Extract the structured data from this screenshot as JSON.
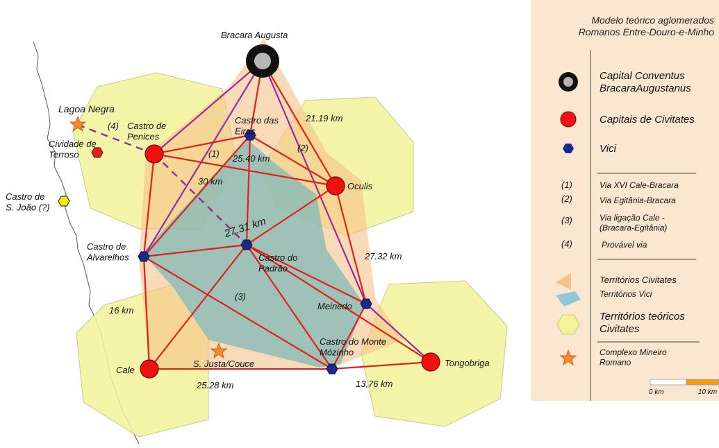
{
  "map": {
    "places": {
      "bracara": "Bracara Augusta",
      "lagoa": "Lagoa Negra",
      "castro_penices": "Castro de\nPenices",
      "cividade": "Cividade de\nTerroso",
      "castro_joao": "Castro de\nS. João (?)",
      "castro_eiras": "Castro das\nEiras",
      "oculis": "Oculis",
      "castro_alvarelhos": "Castro de\nAlvarelhos",
      "castro_padrao": "Castro do\nPadrão",
      "meinedo": "Meinedo",
      "castro_monte": "Castro do Monte\nMózinho",
      "justa": "S. Justa/Couce",
      "cale": "Cale",
      "tongobriga": "Tongobriga"
    },
    "distances": {
      "d2119": "21.19 km",
      "d2540": "25.40 km",
      "d30": "30 km",
      "d2731": "27.31 km",
      "d2732": "27.32 km",
      "d16": "16 km",
      "d2528": "25.28 km",
      "d1376": "13,76 km"
    },
    "route_markers": {
      "r1": "(1)",
      "r2": "(2)",
      "r3": "(3)",
      "r4": "(4)"
    }
  },
  "legend": {
    "title": "Modelo teórico aglomerados\nRomanos Entre-Douro-e-Minho",
    "capital": "Capital Conventus\nBracaraAugustanus",
    "civitates": "Capitais de Civitates",
    "vici": "Vici",
    "routes": [
      {
        "num": "(1)",
        "text": "Via XVI Cale-Bracara"
      },
      {
        "num": "(2)",
        "text": "Via Egitânia-Bracara"
      },
      {
        "num": "(3)",
        "text": "Via ligação Cale -\n(Bracara-Egitânia)"
      },
      {
        "num": "(4)",
        "text": "Provável via"
      }
    ],
    "territories_civ": "Territórios Civitates",
    "territories_vici": "Territórios Vici",
    "theoretical": "Territórios teóricos\nCivitates",
    "mining": "Complexo Mineiro\nRomano",
    "scale_0": "0 km",
    "scale_10": "10 km"
  },
  "colors": {
    "route_red": "#e0201b",
    "route_purple": "#9b2a9a",
    "capital_red": "#f01010",
    "vici_blue": "#1a2a8c",
    "hex_yellow": "#f3f39a",
    "civ_orange": "#f5c28a",
    "vici_teal": "#7fb8b8",
    "star_orange": "#f58a2a",
    "legend_bg": "#fbe6d2"
  }
}
